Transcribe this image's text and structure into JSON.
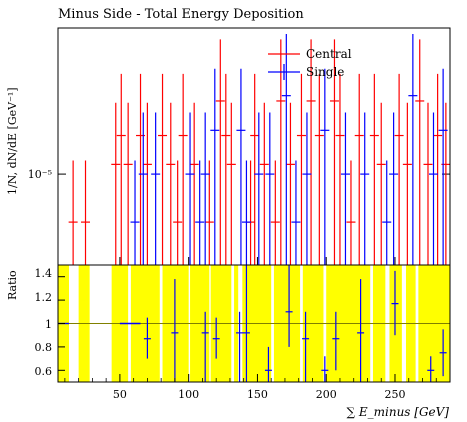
{
  "chart_data": {
    "type": "scatter",
    "title": "Minus Side - Total Energy Deposition",
    "xlabel": "∑ E_minus [GeV]",
    "ylabel_top": "1/N, dN/dE [GeV⁻¹]",
    "ylabel_bottom": "Ratio",
    "xlim": [
      5,
      290
    ],
    "x_ticks": [
      50,
      100,
      150,
      200,
      250
    ],
    "top": {
      "yscale": "log",
      "ylim": [
        5.8e-06,
        2.4e-05
      ],
      "y_tick_label": "10⁻⁵",
      "y_tick_value": 1e-05
    },
    "bottom": {
      "ylim": [
        0.5,
        1.5
      ],
      "y_ticks": [
        "1.4",
        "1.2",
        "1",
        "0.8",
        "0.6"
      ],
      "reference_line": 1
    },
    "legend": {
      "entries": [
        "Central",
        "Single"
      ],
      "placement": "top-right"
    },
    "colors": {
      "central": "#ff0000",
      "single": "#0000ff",
      "band": "#ffff00",
      "ratio_line": "#808000"
    },
    "series": [
      {
        "name": "Central",
        "color": "#ff0000",
        "points": [
          {
            "x": 16,
            "y": 7.5e-06
          },
          {
            "x": 25,
            "y": 7.5e-06
          },
          {
            "x": 47,
            "y": 1.06e-05
          },
          {
            "x": 51,
            "y": 1.26e-05
          },
          {
            "x": 56,
            "y": 1.06e-05
          },
          {
            "x": 65,
            "y": 1.26e-05
          },
          {
            "x": 70,
            "y": 1.06e-05
          },
          {
            "x": 81,
            "y": 1.26e-05
          },
          {
            "x": 87,
            "y": 1.06e-05
          },
          {
            "x": 92,
            "y": 7.5e-06
          },
          {
            "x": 96,
            "y": 1.26e-05
          },
          {
            "x": 104,
            "y": 1.06e-05
          },
          {
            "x": 115,
            "y": 7.5e-06
          },
          {
            "x": 123,
            "y": 1.55e-05
          },
          {
            "x": 127,
            "y": 1.26e-05
          },
          {
            "x": 131,
            "y": 1.06e-05
          },
          {
            "x": 145,
            "y": 7.5e-06
          },
          {
            "x": 148,
            "y": 1.26e-05
          },
          {
            "x": 155,
            "y": 1.06e-05
          },
          {
            "x": 163,
            "y": 7.5e-06
          },
          {
            "x": 167,
            "y": 1.55e-05
          },
          {
            "x": 174,
            "y": 1.06e-05
          },
          {
            "x": 182,
            "y": 1.26e-05
          },
          {
            "x": 189,
            "y": 1.55e-05
          },
          {
            "x": 195,
            "y": 1.26e-05
          },
          {
            "x": 206,
            "y": 1.55e-05
          },
          {
            "x": 210,
            "y": 1.26e-05
          },
          {
            "x": 218,
            "y": 7.5e-06
          },
          {
            "x": 224,
            "y": 1.26e-05
          },
          {
            "x": 235,
            "y": 1.26e-05
          },
          {
            "x": 240,
            "y": 1.06e-05
          },
          {
            "x": 253,
            "y": 1.26e-05
          },
          {
            "x": 259,
            "y": 1.06e-05
          },
          {
            "x": 268,
            "y": 1.55e-05
          },
          {
            "x": 274,
            "y": 1.06e-05
          },
          {
            "x": 281,
            "y": 1.26e-05
          },
          {
            "x": 287,
            "y": 1.06e-05
          }
        ]
      },
      {
        "name": "Single",
        "color": "#0000ff",
        "points": [
          {
            "x": 61,
            "y": 7.5e-06
          },
          {
            "x": 67,
            "y": 1e-05
          },
          {
            "x": 76,
            "y": 1e-05
          },
          {
            "x": 101,
            "y": 1e-05
          },
          {
            "x": 108,
            "y": 7.5e-06
          },
          {
            "x": 112,
            "y": 1e-05
          },
          {
            "x": 119,
            "y": 1.3e-05
          },
          {
            "x": 138,
            "y": 1.3e-05
          },
          {
            "x": 142,
            "y": 7.5e-06
          },
          {
            "x": 151,
            "y": 1e-05
          },
          {
            "x": 159,
            "y": 1e-05
          },
          {
            "x": 171,
            "y": 1.6e-05
          },
          {
            "x": 178,
            "y": 7.5e-06
          },
          {
            "x": 186,
            "y": 1e-05
          },
          {
            "x": 199,
            "y": 1.3e-05
          },
          {
            "x": 214,
            "y": 1e-05
          },
          {
            "x": 228,
            "y": 1e-05
          },
          {
            "x": 244,
            "y": 7.5e-06
          },
          {
            "x": 249,
            "y": 1e-05
          },
          {
            "x": 263,
            "y": 1.6e-05
          },
          {
            "x": 278,
            "y": 1e-05
          },
          {
            "x": 285,
            "y": 1.3e-05
          }
        ]
      }
    ],
    "ratio_band": [
      {
        "x0": 5,
        "x1": 13,
        "lo": 0.5,
        "hi": 1.5
      },
      {
        "x0": 20,
        "x1": 28,
        "lo": 0.5,
        "hi": 1.5
      },
      {
        "x0": 44,
        "x1": 56,
        "lo": 0.5,
        "hi": 1.5
      },
      {
        "x0": 58,
        "x1": 79,
        "lo": 0.5,
        "hi": 1.5
      },
      {
        "x0": 81,
        "x1": 100,
        "lo": 0.5,
        "hi": 1.5
      },
      {
        "x0": 101,
        "x1": 115,
        "lo": 0.5,
        "hi": 1.5
      },
      {
        "x0": 116,
        "x1": 131,
        "lo": 0.5,
        "hi": 1.5
      },
      {
        "x0": 133,
        "x1": 136,
        "lo": 0.5,
        "hi": 1.5
      },
      {
        "x0": 139,
        "x1": 160,
        "lo": 0.5,
        "hi": 1.5
      },
      {
        "x0": 162,
        "x1": 181,
        "lo": 0.5,
        "hi": 1.5
      },
      {
        "x0": 183,
        "x1": 198,
        "lo": 0.5,
        "hi": 1.5
      },
      {
        "x0": 200,
        "x1": 232,
        "lo": 0.5,
        "hi": 1.5
      },
      {
        "x0": 234,
        "x1": 243,
        "lo": 0.5,
        "hi": 1.5
      },
      {
        "x0": 246,
        "x1": 255,
        "lo": 0.5,
        "hi": 1.5
      },
      {
        "x0": 258,
        "x1": 265,
        "lo": 0.5,
        "hi": 1.5
      },
      {
        "x0": 267,
        "x1": 290,
        "lo": 0.5,
        "hi": 1.5
      }
    ],
    "ratio_points": [
      {
        "x": 5,
        "x2": 13,
        "y": 1.0,
        "ylo": 1.0,
        "yhi": 1.0
      },
      {
        "x": 50,
        "x2": 65,
        "y": 1.0,
        "ylo": 1.0,
        "yhi": 1.0
      },
      {
        "x": 70,
        "y": 0.87,
        "ylo": 0.7,
        "yhi": 1.05
      },
      {
        "x": 90,
        "y": 0.92,
        "ylo": 0.5,
        "yhi": 1.38
      },
      {
        "x": 112,
        "y": 0.92,
        "ylo": 0.5,
        "yhi": 1.1
      },
      {
        "x": 120,
        "y": 0.87,
        "ylo": 0.7,
        "yhi": 1.05
      },
      {
        "x": 137,
        "y": 0.92,
        "ylo": 0.5,
        "yhi": 1.1
      },
      {
        "x": 142,
        "y": 0.92,
        "ylo": 0.5,
        "yhi": 1.5
      },
      {
        "x": 158,
        "y": 0.6,
        "ylo": 0.5,
        "yhi": 0.8
      },
      {
        "x": 173,
        "y": 1.1,
        "ylo": 0.8,
        "yhi": 1.5
      },
      {
        "x": 185,
        "y": 0.87,
        "ylo": 0.5,
        "yhi": 1.1
      },
      {
        "x": 199,
        "y": 0.6,
        "ylo": 0.5,
        "yhi": 0.72
      },
      {
        "x": 207,
        "y": 0.87,
        "ylo": 0.6,
        "yhi": 1.1
      },
      {
        "x": 225,
        "y": 0.92,
        "ylo": 0.5,
        "yhi": 1.38
      },
      {
        "x": 250,
        "y": 1.17,
        "ylo": 0.9,
        "yhi": 1.45
      },
      {
        "x": 276,
        "y": 0.6,
        "ylo": 0.5,
        "yhi": 0.72
      },
      {
        "x": 285,
        "y": 0.75,
        "ylo": 0.55,
        "yhi": 0.95
      }
    ]
  }
}
